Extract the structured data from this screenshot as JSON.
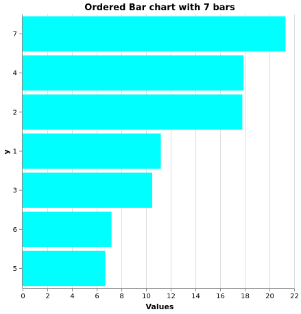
{
  "chart_data": {
    "type": "bar",
    "orientation": "horizontal",
    "title": "Ordered Bar chart with 7 bars",
    "xlabel": "Values",
    "ylabel": "y",
    "categories": [
      "7",
      "4",
      "2",
      "1",
      "3",
      "6",
      "5"
    ],
    "values": [
      21.3,
      17.9,
      17.8,
      11.2,
      10.5,
      7.2,
      6.7
    ],
    "xlim": [
      0,
      22
    ],
    "xticks": [
      0,
      2,
      4,
      6,
      8,
      10,
      12,
      14,
      16,
      18,
      20,
      22
    ],
    "grid": true,
    "bar_color": "#00ffff"
  }
}
